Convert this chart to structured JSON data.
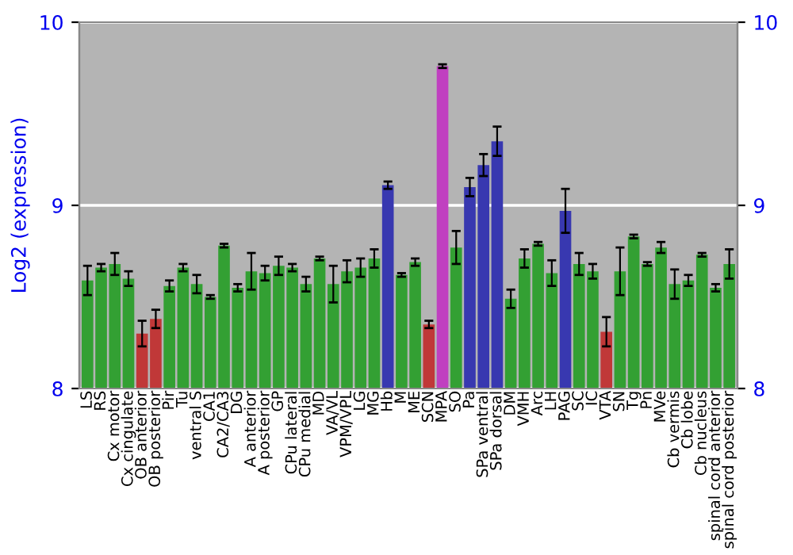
{
  "chart_data": {
    "type": "bar",
    "ylabel": "Log2 (expression)",
    "categories": [
      "LS",
      "RS",
      "Cx motor",
      "Cx cingulate",
      "OB anterior",
      "OB posterior",
      "Pir",
      "Tu",
      "ventral S",
      "CA1",
      "CA2/CA3",
      "DG",
      "A anterior",
      "A posterior",
      "GP",
      "CPu lateral",
      "CPu medial",
      "MD",
      "VA/VL",
      "VPM/VPL",
      "LG",
      "MG",
      "Hb",
      "M",
      "ME",
      "SCN",
      "MPA",
      "SO",
      "Pa",
      "SPa ventral",
      "SPa dorsal",
      "DM",
      "VMH",
      "Arc",
      "LH",
      "PAG",
      "SC",
      "IC",
      "VTA",
      "SN",
      "Tg",
      "Pn",
      "MVe",
      "Cb vermis",
      "Cb lobe",
      "Cb nucleus",
      "spinal cord anterior",
      "spinal cord posterior"
    ],
    "values": [
      8.59,
      8.66,
      8.68,
      8.6,
      8.3,
      8.38,
      8.56,
      8.66,
      8.57,
      8.5,
      8.78,
      8.55,
      8.64,
      8.63,
      8.67,
      8.66,
      8.57,
      8.71,
      8.57,
      8.64,
      8.66,
      8.71,
      9.11,
      8.62,
      8.69,
      8.35,
      9.76,
      8.77,
      9.1,
      9.22,
      9.35,
      8.49,
      8.71,
      8.79,
      8.63,
      8.97,
      8.68,
      8.64,
      8.31,
      8.64,
      8.83,
      8.68,
      8.77,
      8.57,
      8.59,
      8.73,
      8.55,
      8.68
    ],
    "errors": [
      0.08,
      0.02,
      0.06,
      0.04,
      0.07,
      0.05,
      0.03,
      0.02,
      0.05,
      0.01,
      0.01,
      0.02,
      0.1,
      0.04,
      0.05,
      0.02,
      0.04,
      0.01,
      0.1,
      0.06,
      0.05,
      0.05,
      0.02,
      0.01,
      0.02,
      0.02,
      0.01,
      0.09,
      0.05,
      0.06,
      0.08,
      0.05,
      0.05,
      0.01,
      0.07,
      0.12,
      0.06,
      0.04,
      0.08,
      0.13,
      0.01,
      0.01,
      0.03,
      0.08,
      0.03,
      0.01,
      0.02,
      0.08
    ],
    "colors": [
      "#33a033",
      "#33a033",
      "#33a033",
      "#33a033",
      "#c03838",
      "#c03838",
      "#33a033",
      "#33a033",
      "#33a033",
      "#33a033",
      "#33a033",
      "#33a033",
      "#33a033",
      "#33a033",
      "#33a033",
      "#33a033",
      "#33a033",
      "#33a033",
      "#33a033",
      "#33a033",
      "#33a033",
      "#33a033",
      "#3838b0",
      "#33a033",
      "#33a033",
      "#c03838",
      "#c040c0",
      "#33a033",
      "#3838b0",
      "#3838b0",
      "#3838b0",
      "#33a033",
      "#33a033",
      "#33a033",
      "#33a033",
      "#3838b0",
      "#33a033",
      "#33a033",
      "#c03838",
      "#33a033",
      "#33a033",
      "#33a033",
      "#33a033",
      "#33a033",
      "#33a033",
      "#33a033",
      "#33a033",
      "#33a033"
    ],
    "ylim": [
      8,
      10
    ],
    "yticks": [
      8,
      9,
      10
    ],
    "y2lim": [
      8,
      10
    ],
    "y2ticks": [
      8,
      9,
      10
    ],
    "grid": "y"
  }
}
